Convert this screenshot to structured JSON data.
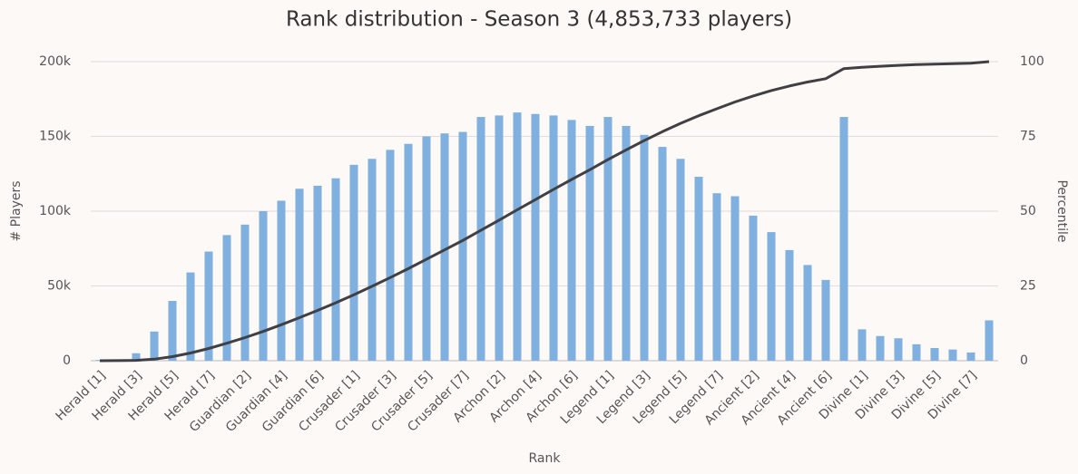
{
  "chart_data": {
    "type": "bar",
    "title": "Rank distribution - Season 3 (4,853,733 players)",
    "x_label": "Rank",
    "y_label": "# Players",
    "y2_label": "Percentile",
    "categories": [
      "Herald [1]",
      null,
      "Herald [3]",
      null,
      "Herald [5]",
      null,
      "Herald [7]",
      null,
      "Guardian [2]",
      null,
      "Guardian [4]",
      null,
      "Guardian [6]",
      null,
      "Crusader [1]",
      null,
      "Crusader [3]",
      null,
      "Crusader [5]",
      null,
      "Crusader [7]",
      null,
      "Archon [2]",
      null,
      "Archon [4]",
      null,
      "Archon [6]",
      null,
      "Legend [1]",
      null,
      "Legend [3]",
      null,
      "Legend [5]",
      null,
      "Legend [7]",
      null,
      "Ancient [2]",
      null,
      "Ancient [4]",
      null,
      "Ancient [6]",
      null,
      "Divine [1]",
      null,
      "Divine [3]",
      null,
      "Divine [5]",
      null,
      "Divine [7]",
      null
    ],
    "series": [
      {
        "type": "bar",
        "color": "#7fb0e0",
        "values": [
          500,
          800,
          5000,
          19500,
          40000,
          59000,
          73000,
          84000,
          91000,
          100000,
          107000,
          115000,
          117000,
          122000,
          131000,
          135000,
          141000,
          145000,
          150000,
          152000,
          153000,
          163000,
          164000,
          166000,
          165000,
          164000,
          161000,
          157000,
          163000,
          157000,
          151000,
          143000,
          135000,
          123000,
          112000,
          110000,
          97000,
          86000,
          74000,
          64000,
          54000,
          163000,
          21000,
          16500,
          15000,
          11000,
          8500,
          7500,
          5500,
          27000
        ]
      },
      {
        "type": "line",
        "axis": "y2",
        "color": "#3f3f44",
        "values": [
          0.01,
          0.03,
          0.13,
          0.53,
          1.36,
          2.59,
          4.1,
          5.84,
          7.73,
          9.8,
          12.02,
          14.4,
          16.83,
          19.35,
          22.07,
          24.87,
          27.79,
          30.79,
          33.9,
          37.05,
          40.22,
          43.6,
          47.0,
          50.44,
          53.86,
          57.26,
          60.6,
          63.85,
          67.23,
          70.48,
          73.61,
          76.58,
          79.37,
          81.92,
          84.25,
          86.53,
          88.53,
          90.32,
          91.85,
          93.18,
          94.3,
          97.68,
          98.11,
          98.45,
          98.76,
          98.99,
          99.17,
          99.32,
          99.44,
          100
        ]
      }
    ],
    "ylim": [
      0,
      200000
    ],
    "yticks": [
      0,
      {
        "value": 50000,
        "label": "50k"
      },
      {
        "value": 100000,
        "label": "100k"
      },
      {
        "value": 150000,
        "label": "150k"
      },
      {
        "value": 200000,
        "label": "200k"
      }
    ],
    "y2lim": [
      0,
      100
    ],
    "y2ticks": [
      0,
      25,
      50,
      75,
      100
    ],
    "grid": true
  }
}
